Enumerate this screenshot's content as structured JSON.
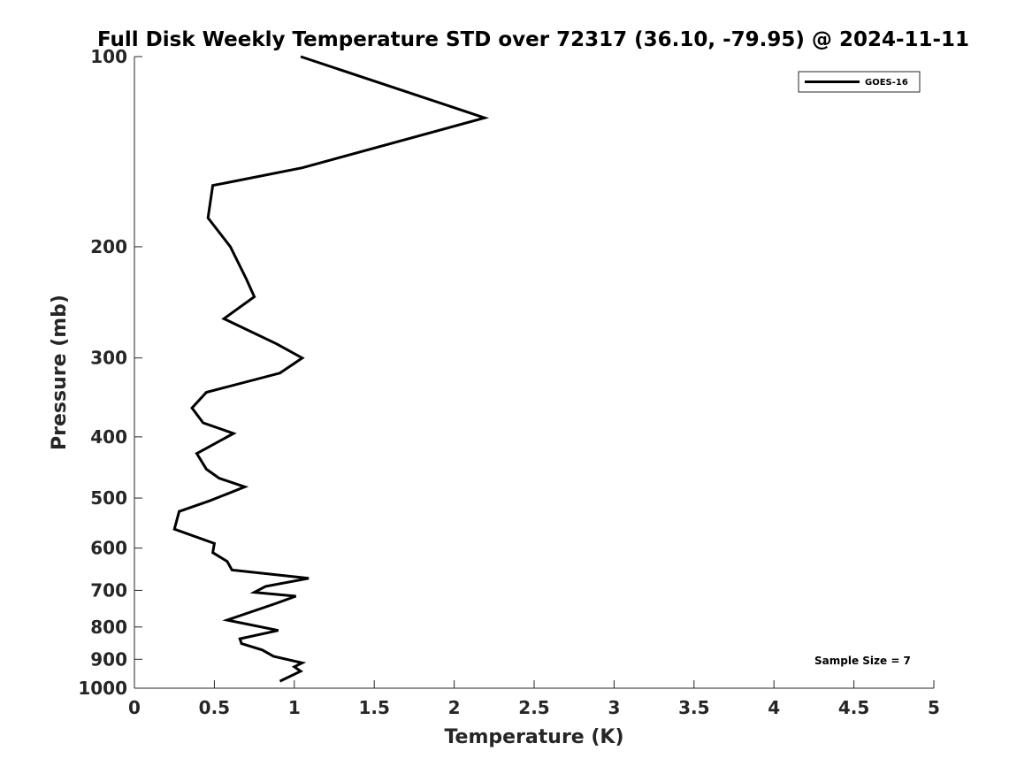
{
  "chart_data": {
    "type": "line",
    "title": "Full Disk Weekly Temperature STD over 72317 (36.10, -79.95) @ 2024-11-11",
    "xlabel": "Temperature (K)",
    "ylabel": "Pressure (mb)",
    "xlim": [
      0,
      5
    ],
    "ylim": [
      100,
      1000
    ],
    "y_scale": "log",
    "y_reversed": true,
    "grid": false,
    "legend_position": "top-right",
    "x_ticks": [
      "0",
      "0.5",
      "1",
      "1.5",
      "2",
      "2.5",
      "3",
      "3.5",
      "4",
      "4.5",
      "5"
    ],
    "y_ticks": [
      "100",
      "200",
      "300",
      "400",
      "500",
      "600",
      "700",
      "800",
      "900",
      "1000"
    ],
    "annotation": "Sample Size = 7",
    "series": [
      {
        "name": "GOES-16",
        "color": "#000000",
        "points": [
          [
            1.04,
            100
          ],
          [
            2.19,
            125
          ],
          [
            1.05,
            150
          ],
          [
            0.49,
            160
          ],
          [
            0.46,
            180
          ],
          [
            0.6,
            200
          ],
          [
            0.7,
            225
          ],
          [
            0.75,
            240
          ],
          [
            0.56,
            260
          ],
          [
            0.89,
            285
          ],
          [
            1.05,
            300
          ],
          [
            0.91,
            317
          ],
          [
            0.45,
            340
          ],
          [
            0.36,
            360
          ],
          [
            0.43,
            380
          ],
          [
            0.62,
            395
          ],
          [
            0.39,
            425
          ],
          [
            0.45,
            450
          ],
          [
            0.53,
            465
          ],
          [
            0.69,
            480
          ],
          [
            0.47,
            505
          ],
          [
            0.28,
            525
          ],
          [
            0.25,
            560
          ],
          [
            0.5,
            590
          ],
          [
            0.49,
            610
          ],
          [
            0.58,
            630
          ],
          [
            0.61,
            650
          ],
          [
            1.09,
            670
          ],
          [
            0.82,
            690
          ],
          [
            0.75,
            705
          ],
          [
            1.01,
            715
          ],
          [
            0.88,
            735
          ],
          [
            0.58,
            780
          ],
          [
            0.9,
            810
          ],
          [
            0.66,
            835
          ],
          [
            0.67,
            850
          ],
          [
            0.8,
            870
          ],
          [
            0.87,
            890
          ],
          [
            1.05,
            912
          ],
          [
            1.0,
            925
          ],
          [
            1.04,
            940
          ],
          [
            0.91,
            975
          ]
        ]
      }
    ]
  }
}
